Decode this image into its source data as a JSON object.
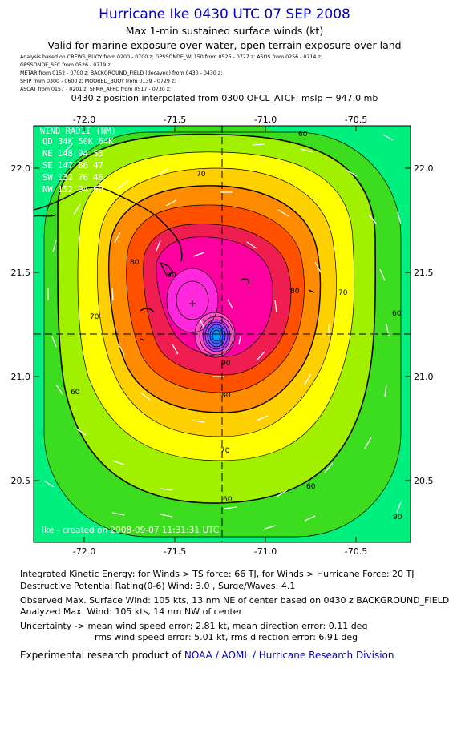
{
  "header": {
    "title": "Hurricane Ike 0430 UTC 07 SEP 2008",
    "subtitle1": "Max 1-min sustained surface winds (kt)",
    "subtitle2": "Valid for marine exposure over water, open terrain exposure over land"
  },
  "sources": [
    "Analysis based on   CREWS_BUOY from 0200 - 0700 z;   GPSSONDE_WL150 from 0526 - 0727 z;   ASOS from 0256 - 0714 z;",
    "GPSSONDE_SFC from 0526 - 0719 z;",
    "METAR from 0152 - 0700 z;   BACKGROUND_FIELD (decayed) from 0430 - 0430 z;",
    "SHIP from 0300 - 0600 z;   MOORED_BUOY from 0139 - 0729 z;",
    "ASCAT from 0157 - 0201 z;   SFMR_AFRC from 0517 - 0730 z;"
  ],
  "position_line": "0430 z position interpolated from 0300 OFCL_ATCF; mslp = 947.0 mb",
  "map": {
    "lon_ticks": [
      "-72.0",
      "-71.5",
      "-71.0",
      "-70.5"
    ],
    "lat_ticks": [
      "22.0",
      "21.5",
      "21.0",
      "20.5"
    ],
    "contour_labels": [
      "60",
      "70",
      "80",
      "90",
      "60",
      "70",
      "80",
      "60",
      "60",
      "90",
      "70",
      "80",
      "60",
      "90"
    ],
    "wind_radii": {
      "header": "WIND RADII (NM)",
      "rows": [
        "QD  34K  50K  64K",
        "NE  148   94   53",
        "SE  147   86   47",
        "SW  132   76   46",
        "NW  152   94   60"
      ]
    },
    "stamp": "Ike - created on 2008-09-07  11:31:31 UTC",
    "colors": {
      "band_50": "#00f080",
      "band_60": "#3cdc1e",
      "band_65": "#a0f000",
      "band_70": "#ffff00",
      "band_75": "#ffd000",
      "band_80": "#ff8c00",
      "band_85": "#ff5000",
      "band_90": "#f01e50",
      "band_95": "#ff00a0",
      "band_100": "#ff28dc",
      "eye": "#00a0ff"
    }
  },
  "footer": {
    "ike": "Integrated Kinetic Energy:  for Winds > TS force: 66 TJ,  for Winds > Hurricane Force: 20 TJ",
    "dpr": "Destructive Potential Rating(0-6)   Wind: 3.0 , Surge/Waves: 4.1",
    "obs_max": "Observed Max. Surface Wind: 105 kts, 13 nm NE of center based on 0430 z BACKGROUND_FIELD",
    "ana_max": "Analyzed Max. Wind: 105 kts, 14 nm NW of center",
    "unc1": "Uncertainty -> mean wind speed error: 2.81 kt,   mean direction error: 0.11 deg",
    "unc2": "rms wind speed error: 5.01 kt,   rms direction error: 6.91 deg",
    "credit_prefix": "Experimental research product of ",
    "credit_link": "NOAA / AOML / Hurricane Research Division"
  }
}
